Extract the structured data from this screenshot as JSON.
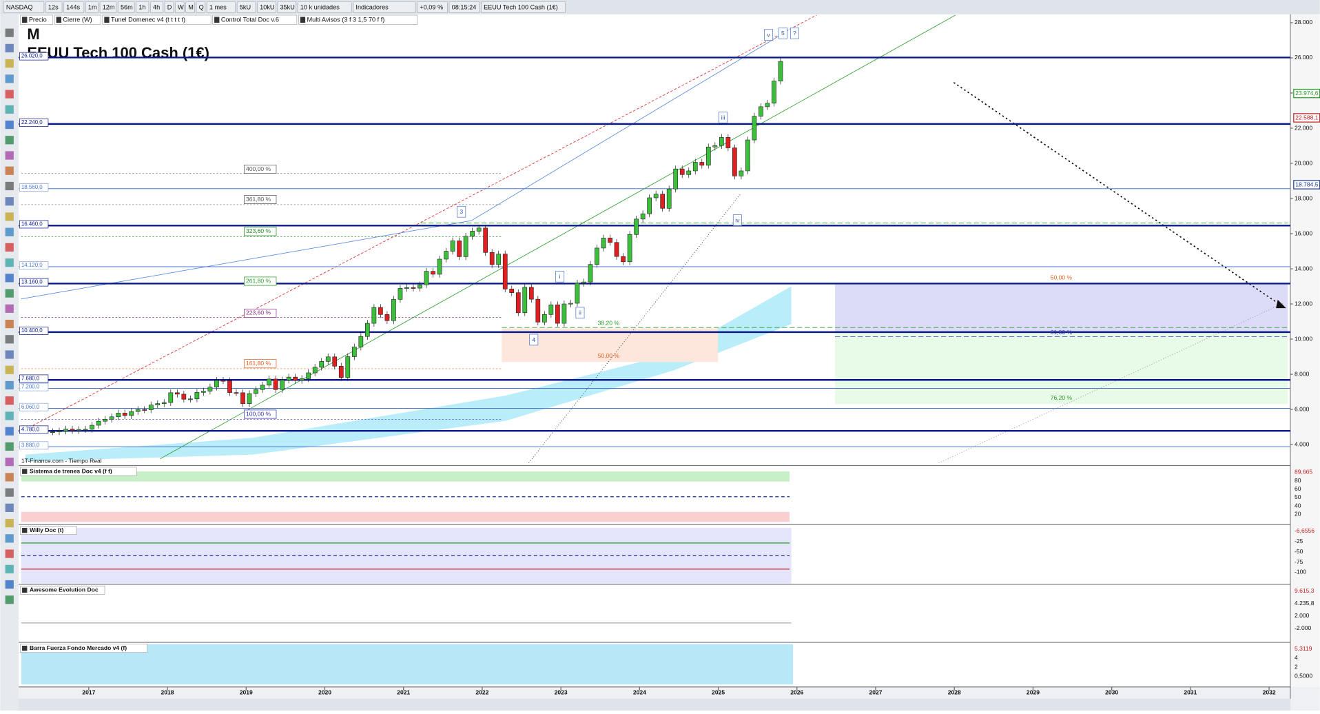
{
  "toolbar": {
    "symbol": "NASDAQ",
    "timeframes": [
      "12s",
      "144s",
      "1m",
      "12m",
      "56m",
      "1h",
      "4h",
      "D",
      "W",
      "M",
      "Q"
    ],
    "period": "1 mes",
    "units": [
      "5kU",
      "10kU",
      "35kU"
    ],
    "unit_mode": "10 k unidades",
    "indicators": "Indicadores",
    "change": "+0,09 %",
    "time": "08:15:24",
    "instrument": "EEUU Tech 100 Cash (1€)"
  },
  "overlays": [
    "Precio",
    "Cierre (W)",
    "Tunel Domenec v4 (t t t t t)",
    "Control Total Doc v.6",
    "Multi Avisos (3 f 3 1,5 70 f f)"
  ],
  "chart_data": {
    "type": "candlestick",
    "title": "EEUU Tech 100 Cash (1€)",
    "period_label": "M",
    "source": "1T-Finance.com - Tiempo Real",
    "x": [
      "2016-07",
      "2016-08",
      "2016-09",
      "2016-10",
      "2016-11",
      "2016-12",
      "2017-01",
      "2017-02",
      "2017-03",
      "2017-04",
      "2017-05",
      "2017-06",
      "2017-07",
      "2017-08",
      "2017-09",
      "2017-10",
      "2017-11",
      "2017-12",
      "2018-01",
      "2018-02",
      "2018-03",
      "2018-04",
      "2018-05",
      "2018-06",
      "2018-07",
      "2018-08",
      "2018-09",
      "2018-10",
      "2018-11",
      "2018-12",
      "2019-01",
      "2019-02",
      "2019-03",
      "2019-04",
      "2019-05",
      "2019-06",
      "2019-07",
      "2019-08",
      "2019-09",
      "2019-10",
      "2019-11",
      "2019-12",
      "2020-01",
      "2020-02",
      "2020-03",
      "2020-04",
      "2020-05",
      "2020-06",
      "2020-07",
      "2020-08",
      "2020-09",
      "2020-10",
      "2020-11",
      "2020-12",
      "2021-01",
      "2021-02",
      "2021-03",
      "2021-04",
      "2021-05",
      "2021-06",
      "2021-07",
      "2021-08",
      "2021-09",
      "2021-10",
      "2021-11",
      "2021-12",
      "2022-01",
      "2022-02",
      "2022-03",
      "2022-04",
      "2022-05",
      "2022-06",
      "2022-07",
      "2022-08",
      "2022-09",
      "2022-10",
      "2022-11",
      "2022-12",
      "2023-01",
      "2023-02",
      "2023-03",
      "2023-04",
      "2023-05",
      "2023-06",
      "2023-07",
      "2023-08",
      "2023-09",
      "2023-10",
      "2023-11",
      "2023-12",
      "2024-01",
      "2024-02",
      "2024-03",
      "2024-04",
      "2024-05",
      "2024-06",
      "2024-07",
      "2024-08",
      "2024-09",
      "2024-10",
      "2024-11",
      "2024-12",
      "2025-01",
      "2025-02",
      "2025-03",
      "2025-04",
      "2025-05",
      "2025-06",
      "2025-07",
      "2025-08",
      "2025-09",
      "2025-10"
    ],
    "closes": [
      4730,
      4770,
      4880,
      4800,
      4860,
      4870,
      5100,
      5330,
      5440,
      5580,
      5790,
      5650,
      5880,
      5990,
      5980,
      6250,
      6330,
      6390,
      6950,
      6870,
      6580,
      6600,
      6970,
      7040,
      7270,
      7650,
      7630,
      6960,
      6950,
      6330,
      6900,
      7130,
      7380,
      7730,
      7130,
      7670,
      7840,
      7660,
      7750,
      8080,
      8400,
      8730,
      8990,
      8460,
      7810,
      9000,
      9550,
      10150,
      10900,
      11800,
      11400,
      11050,
      12260,
      12890,
      12930,
      12900,
      13090,
      13860,
      13690,
      14550,
      15000,
      15590,
      14690,
      15850,
      16140,
      16320,
      14930,
      14240,
      14840,
      12850,
      12640,
      11500,
      12950,
      12270,
      10970,
      11400,
      11950,
      10900,
      12000,
      12040,
      13180,
      13250,
      14250,
      15180,
      15750,
      15500,
      14700,
      14400,
      15950,
      16830,
      17130,
      18040,
      18250,
      17440,
      18540,
      19680,
      19360,
      19570,
      20060,
      19890,
      20930,
      21010,
      21480,
      20880,
      19280,
      19570,
      21330,
      22680,
      23220,
      23420,
      24680,
      25800
    ],
    "xlim": [
      2016.11,
      2032.27
    ],
    "ylim": [
      2950,
      28430
    ],
    "xticks": [
      2017,
      2018,
      2019,
      2020,
      2021,
      2022,
      2023,
      2024,
      2025,
      2026,
      2027,
      2028,
      2029,
      2030,
      2031,
      2032
    ],
    "yticks": [
      {
        "value": 28000,
        "label": "28.000"
      },
      {
        "value": 26000,
        "label": "26.000"
      },
      {
        "value": 24000,
        "label": "24.000"
      },
      {
        "value": 22000,
        "label": "22.000"
      },
      {
        "value": 20000,
        "label": "20.000"
      },
      {
        "value": 18000,
        "label": "18.000"
      },
      {
        "value": 16000,
        "label": "16.000"
      },
      {
        "value": 14000,
        "label": "14.000"
      },
      {
        "value": 12000,
        "label": "12.000"
      },
      {
        "value": 10000,
        "label": "10.000"
      },
      {
        "value": 8000,
        "label": "8.000"
      },
      {
        "value": 6000,
        "label": "6.000"
      },
      {
        "value": 4000,
        "label": "4.000"
      }
    ],
    "levels": [
      {
        "value": 26020,
        "label": "26.020,0"
      },
      {
        "value": 22240,
        "label": "22.240,0"
      },
      {
        "value": 18560,
        "label": "18.560,0"
      },
      {
        "value": 16460,
        "label": "16.460,0"
      },
      {
        "value": 14120,
        "label": "14.120,0"
      },
      {
        "value": 13160,
        "label": "13.160,0"
      },
      {
        "value": 10400,
        "label": "10.400,0"
      },
      {
        "value": 7680,
        "label": "7.680,0"
      },
      {
        "value": 7200,
        "label": "7.200,0"
      },
      {
        "value": 6060,
        "label": "6.060,0"
      },
      {
        "value": 4780,
        "label": "4.780,0"
      },
      {
        "value": 3880,
        "label": "3.880,0"
      }
    ],
    "price_tags": [
      {
        "value": 23974.6,
        "label": "23.974,6",
        "color": "#22a022"
      },
      {
        "value": 22588.1,
        "label": "22.588,1",
        "color": "#c02020"
      },
      {
        "value": 18784.5,
        "label": "18.784,5",
        "color": "#1a3a9a"
      }
    ],
    "fib_labels": [
      "400,00 %",
      "361,80 %",
      "323,60 %",
      "261,80 %",
      "223,60 %",
      "161,80 %",
      "100,00 %",
      "38,20 %",
      "50,00 %",
      "50,00 %",
      "61,80 %",
      "76,20 %"
    ],
    "wave_labels": [
      "v",
      "5",
      "?",
      "iii",
      "3",
      "i",
      "ii",
      "4",
      "iv"
    ]
  },
  "indicators": [
    {
      "name": "Sistema de trenes Doc v4 (f f)",
      "labels": [
        "89,665",
        "80",
        "60",
        "50",
        "40",
        "20"
      ]
    },
    {
      "name": "Willy Doc (t)",
      "labels": [
        "-6,6556",
        "-25",
        "-50",
        "-75",
        "-100"
      ]
    },
    {
      "name": "Awesome Evolution Doc",
      "labels": [
        "9.615,3",
        "4.235,8",
        "2.000",
        "-2.000"
      ]
    },
    {
      "name": "Barra Fuerza Fondo Mercado v4 (f)",
      "labels": [
        "5,3119",
        "4",
        "2",
        "0,5000"
      ]
    }
  ]
}
